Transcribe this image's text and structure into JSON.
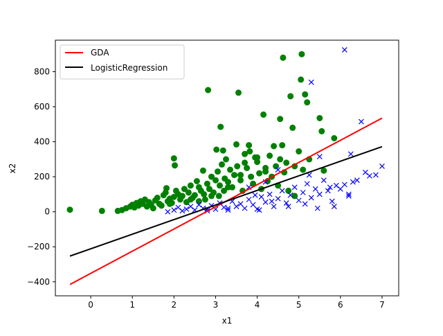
{
  "chart_data": {
    "type": "scatter",
    "title": "",
    "xlabel": "x1",
    "ylabel": "x2",
    "xlim": [
      -0.85,
      7.4
    ],
    "ylim": [
      -480,
      980
    ],
    "xticks": [
      0,
      1,
      2,
      3,
      4,
      5,
      6,
      7
    ],
    "yticks": [
      -400,
      -200,
      0,
      200,
      400,
      600,
      800
    ],
    "grid": false,
    "legend_position": "upper-left",
    "lines": [
      {
        "name": "GDA",
        "color": "#ff0000",
        "x": [
          -0.5,
          7.0
        ],
        "y": [
          -415,
          535
        ]
      },
      {
        "name": "LogisticRegression",
        "color": "#000000",
        "x": [
          -0.5,
          7.0
        ],
        "y": [
          -253,
          372
        ]
      }
    ],
    "series": [
      {
        "marker": "circle",
        "color": "#008000",
        "points": [
          [
            -0.5,
            12
          ],
          [
            0.27,
            5
          ],
          [
            0.65,
            5
          ],
          [
            0.75,
            10
          ],
          [
            0.85,
            20
          ],
          [
            0.95,
            30
          ],
          [
            1.0,
            40
          ],
          [
            1.05,
            25
          ],
          [
            1.1,
            50
          ],
          [
            1.15,
            35
          ],
          [
            1.2,
            60
          ],
          [
            1.25,
            45
          ],
          [
            1.3,
            70
          ],
          [
            1.35,
            30
          ],
          [
            1.4,
            55
          ],
          [
            1.45,
            40
          ],
          [
            1.5,
            20
          ],
          [
            1.55,
            65
          ],
          [
            1.6,
            80
          ],
          [
            1.65,
            45
          ],
          [
            1.7,
            35
          ],
          [
            1.75,
            95
          ],
          [
            1.8,
            110
          ],
          [
            1.82,
            135
          ],
          [
            1.85,
            60
          ],
          [
            1.9,
            75
          ],
          [
            1.95,
            50
          ],
          [
            2.0,
            85
          ],
          [
            2.0,
            305
          ],
          [
            2.02,
            265
          ],
          [
            2.05,
            120
          ],
          [
            2.1,
            100
          ],
          [
            2.15,
            70
          ],
          [
            2.2,
            90
          ],
          [
            2.25,
            130
          ],
          [
            2.3,
            55
          ],
          [
            2.35,
            110
          ],
          [
            2.4,
            150
          ],
          [
            2.45,
            80
          ],
          [
            2.5,
            95
          ],
          [
            2.55,
            175
          ],
          [
            2.6,
            140
          ],
          [
            2.6,
            60
          ],
          [
            2.65,
            120
          ],
          [
            2.7,
            235
          ],
          [
            2.72,
            100
          ],
          [
            2.75,
            70
          ],
          [
            2.8,
            160
          ],
          [
            2.82,
            695
          ],
          [
            2.85,
            130
          ],
          [
            2.9,
            200
          ],
          [
            2.95,
            110
          ],
          [
            3.0,
            180
          ],
          [
            3.02,
            355
          ],
          [
            3.05,
            230
          ],
          [
            3.08,
            90
          ],
          [
            3.1,
            150
          ],
          [
            3.12,
            485
          ],
          [
            3.15,
            270
          ],
          [
            3.18,
            350
          ],
          [
            3.2,
            120
          ],
          [
            3.22,
            190
          ],
          [
            3.25,
            300
          ],
          [
            3.3,
            170
          ],
          [
            3.35,
            240
          ],
          [
            3.4,
            140
          ],
          [
            3.45,
            210
          ],
          [
            3.5,
            385
          ],
          [
            3.52,
            260
          ],
          [
            3.55,
            680
          ],
          [
            3.6,
            180
          ],
          [
            3.65,
            120
          ],
          [
            3.7,
            330
          ],
          [
            3.75,
            250
          ],
          [
            3.8,
            380
          ],
          [
            3.82,
            345
          ],
          [
            3.85,
            200
          ],
          [
            3.9,
            160
          ],
          [
            3.95,
            310
          ],
          [
            4.0,
            285
          ],
          [
            4.05,
            220
          ],
          [
            4.1,
            130
          ],
          [
            4.15,
            555
          ],
          [
            4.2,
            250
          ],
          [
            4.25,
            175
          ],
          [
            4.3,
            320
          ],
          [
            4.35,
            200
          ],
          [
            4.4,
            375
          ],
          [
            4.45,
            260
          ],
          [
            4.5,
            150
          ],
          [
            4.55,
            300
          ],
          [
            4.6,
            380
          ],
          [
            4.62,
            880
          ],
          [
            4.65,
            225
          ],
          [
            4.7,
            280
          ],
          [
            4.75,
            120
          ],
          [
            4.8,
            660
          ],
          [
            4.85,
            480
          ],
          [
            4.9,
            90
          ],
          [
            5.0,
            345
          ],
          [
            5.05,
            755
          ],
          [
            5.07,
            900
          ],
          [
            5.1,
            240
          ],
          [
            5.15,
            670
          ],
          [
            5.2,
            625
          ],
          [
            5.25,
            300
          ],
          [
            5.5,
            535
          ],
          [
            5.55,
            460
          ],
          [
            5.6,
            235
          ],
          [
            5.85,
            420
          ],
          [
            4.55,
            530
          ],
          [
            4.0,
            310
          ],
          [
            3.7,
            280
          ],
          [
            3.3,
            140
          ],
          [
            2.9,
            90
          ],
          [
            2.4,
            70
          ],
          [
            1.9,
            45
          ],
          [
            3.6,
            210
          ],
          [
            4.2,
            230
          ],
          [
            4.9,
            260
          ]
        ]
      },
      {
        "marker": "x",
        "color": "#0000ff",
        "points": [
          [
            1.85,
            0
          ],
          [
            2.0,
            10
          ],
          [
            2.1,
            25
          ],
          [
            2.2,
            5
          ],
          [
            2.3,
            15
          ],
          [
            2.4,
            30
          ],
          [
            2.5,
            10
          ],
          [
            2.6,
            40
          ],
          [
            2.7,
            20
          ],
          [
            2.8,
            5
          ],
          [
            2.9,
            35
          ],
          [
            3.0,
            15
          ],
          [
            3.1,
            50
          ],
          [
            3.2,
            25
          ],
          [
            3.3,
            10
          ],
          [
            3.4,
            60
          ],
          [
            3.5,
            30
          ],
          [
            3.6,
            45
          ],
          [
            3.7,
            20
          ],
          [
            3.8,
            70
          ],
          [
            3.9,
            40
          ],
          [
            4.0,
            15
          ],
          [
            4.1,
            85
          ],
          [
            4.2,
            55
          ],
          [
            4.3,
            100
          ],
          [
            4.4,
            30
          ],
          [
            4.5,
            75
          ],
          [
            4.6,
            120
          ],
          [
            4.7,
            50
          ],
          [
            4.8,
            95
          ],
          [
            4.9,
            140
          ],
          [
            5.0,
            65
          ],
          [
            5.1,
            110
          ],
          [
            5.2,
            160
          ],
          [
            5.3,
            80
          ],
          [
            5.4,
            130
          ],
          [
            5.5,
            100
          ],
          [
            5.6,
            180
          ],
          [
            5.7,
            120
          ],
          [
            5.75,
            140
          ],
          [
            5.8,
            60
          ],
          [
            5.9,
            150
          ],
          [
            6.0,
            130
          ],
          [
            6.1,
            155
          ],
          [
            6.2,
            100
          ],
          [
            6.25,
            330
          ],
          [
            6.3,
            170
          ],
          [
            6.4,
            180
          ],
          [
            6.5,
            515
          ],
          [
            6.6,
            225
          ],
          [
            6.7,
            205
          ],
          [
            6.85,
            210
          ],
          [
            7.0,
            260
          ],
          [
            6.1,
            925
          ],
          [
            5.3,
            740
          ],
          [
            5.5,
            315
          ],
          [
            4.5,
            240
          ],
          [
            4.2,
            170
          ],
          [
            3.8,
            140
          ],
          [
            4.75,
            30
          ],
          [
            5.15,
            45
          ],
          [
            5.45,
            20
          ],
          [
            3.95,
            95
          ],
          [
            4.35,
            60
          ],
          [
            3.3,
            20
          ],
          [
            2.8,
            15
          ],
          [
            5.25,
            210
          ],
          [
            6.2,
            90
          ],
          [
            5.85,
            30
          ],
          [
            4.05,
            10
          ]
        ]
      }
    ]
  }
}
